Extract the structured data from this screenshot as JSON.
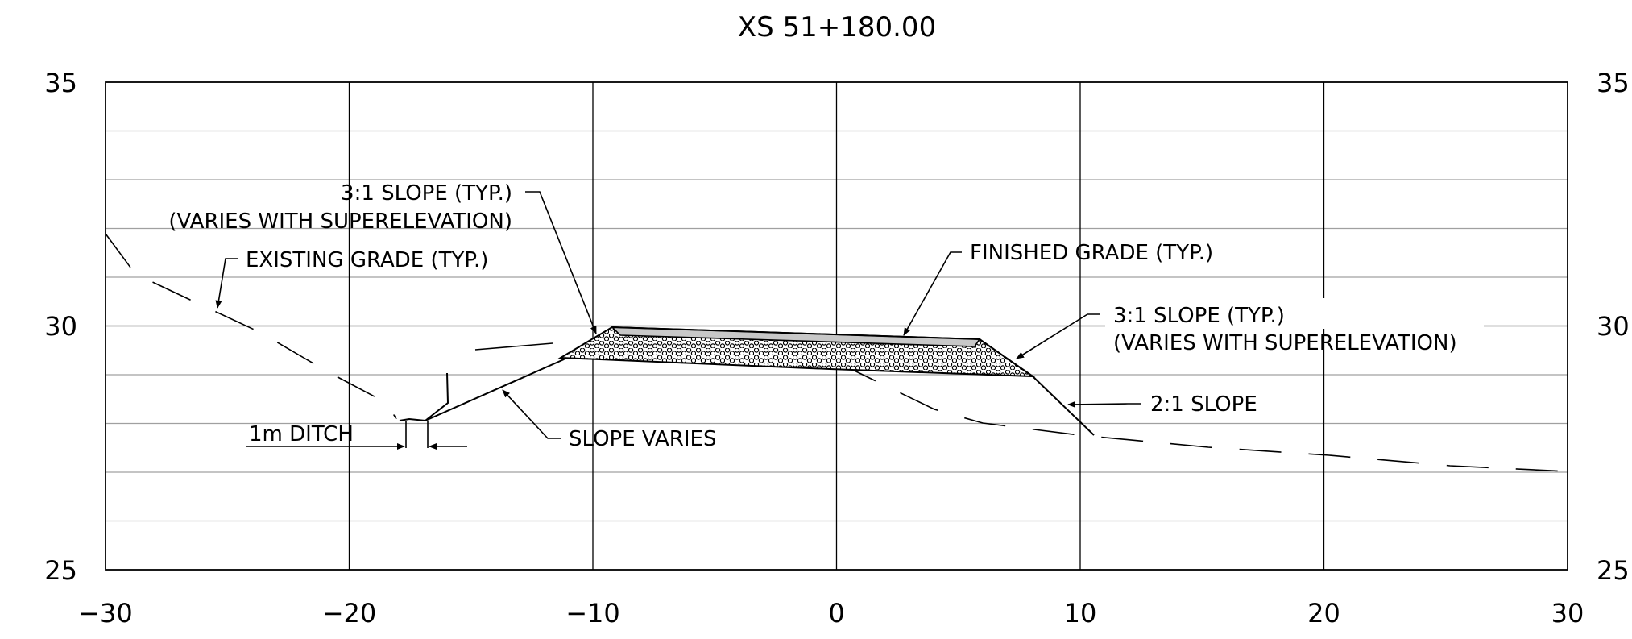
{
  "title": "XS 51+180.00",
  "axes": {
    "x_ticks": [
      "−30",
      "−20",
      "−10",
      "0",
      "10",
      "20",
      "30"
    ],
    "y_ticks_left": [
      "35",
      "30",
      "25"
    ],
    "y_ticks_right": [
      "35",
      "30",
      "25"
    ]
  },
  "annotations": {
    "slope_left_line1": "3:1 SLOPE (TYP.)",
    "slope_left_line2": "(VARIES WITH SUPERELEVATION)",
    "existing_grade": "EXISTING GRADE (TYP.)",
    "finished_grade": "FINISHED GRADE (TYP.)",
    "slope_right_line1": "3:1 SLOPE (TYP.)",
    "slope_right_line2": "(VARIES WITH SUPERELEVATION)",
    "slope_2to1": "2:1 SLOPE",
    "slope_varies": "SLOPE VARIES",
    "ditch": "1m DITCH"
  },
  "colors": {
    "ink": "#000000",
    "minor_grid": "#a0a0a0",
    "pavement_fill": "#c8c8c8"
  }
}
